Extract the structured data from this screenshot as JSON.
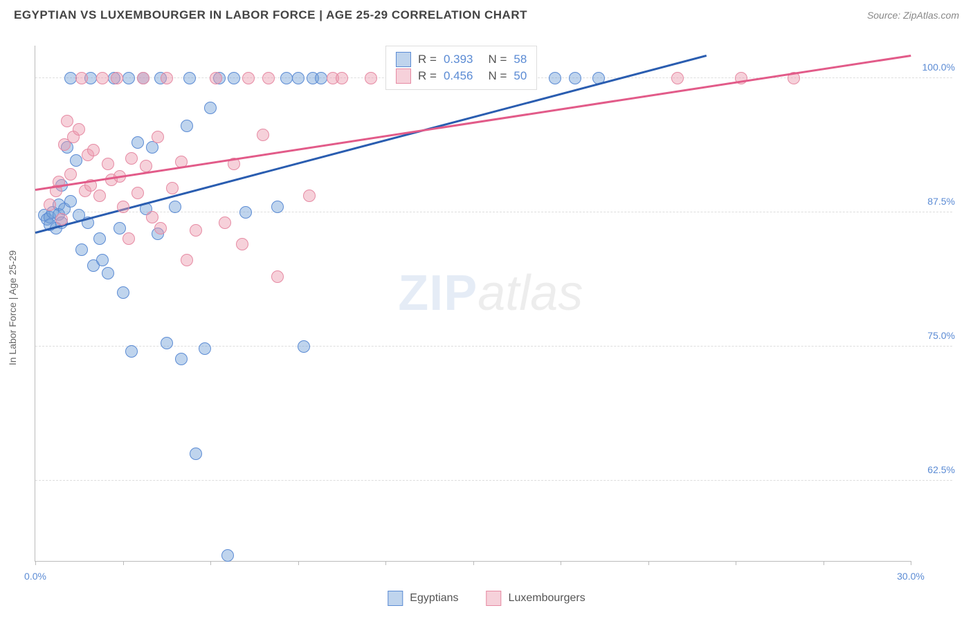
{
  "header": {
    "title": "EGYPTIAN VS LUXEMBOURGER IN LABOR FORCE | AGE 25-29 CORRELATION CHART",
    "source_label": "Source: ZipAtlas.com"
  },
  "chart": {
    "type": "scatter",
    "y_axis_label": "In Labor Force | Age 25-29",
    "x_range": [
      0,
      30
    ],
    "y_range": [
      55,
      103
    ],
    "x_ticks": [
      0,
      3,
      6,
      9,
      12,
      15,
      18,
      21,
      24,
      27,
      30
    ],
    "x_tick_labels": {
      "0": "0.0%",
      "30": "30.0%"
    },
    "y_grid": [
      62.5,
      75.0,
      87.5,
      100.0
    ],
    "y_tick_labels": [
      "62.5%",
      "75.0%",
      "87.5%",
      "100.0%"
    ],
    "background_color": "#ffffff",
    "grid_color": "#dddddd",
    "axis_color": "#bbbbbb",
    "label_color": "#5b8bd4",
    "series": [
      {
        "key": "egyptians",
        "name": "Egyptians",
        "point_fill": "rgba(114,159,216,0.45)",
        "point_stroke": "#5b8bd4",
        "line_color": "#2a5db0",
        "r_value": "0.393",
        "n_value": "58",
        "regression": {
          "x1": 0,
          "y1": 85.5,
          "x2": 23,
          "y2": 102
        },
        "points": [
          [
            0.3,
            87.2
          ],
          [
            0.4,
            86.8
          ],
          [
            0.5,
            87.0
          ],
          [
            0.5,
            86.3
          ],
          [
            0.6,
            87.5
          ],
          [
            0.7,
            86.0
          ],
          [
            0.8,
            88.2
          ],
          [
            0.8,
            87.3
          ],
          [
            0.9,
            86.5
          ],
          [
            0.9,
            90.0
          ],
          [
            1.0,
            87.8
          ],
          [
            1.1,
            93.5
          ],
          [
            1.2,
            100.0
          ],
          [
            1.2,
            88.5
          ],
          [
            1.4,
            92.3
          ],
          [
            1.5,
            87.2
          ],
          [
            1.6,
            84.0
          ],
          [
            1.8,
            86.5
          ],
          [
            1.9,
            100.0
          ],
          [
            2.0,
            82.5
          ],
          [
            2.2,
            85.0
          ],
          [
            2.3,
            83.0
          ],
          [
            2.5,
            81.8
          ],
          [
            2.7,
            100.0
          ],
          [
            2.9,
            86.0
          ],
          [
            3.0,
            80.0
          ],
          [
            3.2,
            100.0
          ],
          [
            3.3,
            74.5
          ],
          [
            3.5,
            94.0
          ],
          [
            3.7,
            100.0
          ],
          [
            3.8,
            87.8
          ],
          [
            4.0,
            93.5
          ],
          [
            4.2,
            85.5
          ],
          [
            4.3,
            100.0
          ],
          [
            4.5,
            75.3
          ],
          [
            4.8,
            88.0
          ],
          [
            5.0,
            73.8
          ],
          [
            5.2,
            95.5
          ],
          [
            5.3,
            100.0
          ],
          [
            5.5,
            65.0
          ],
          [
            5.8,
            74.8
          ],
          [
            6.0,
            97.2
          ],
          [
            6.3,
            100.0
          ],
          [
            6.6,
            55.5
          ],
          [
            6.8,
            100.0
          ],
          [
            7.2,
            87.5
          ],
          [
            8.3,
            88.0
          ],
          [
            8.6,
            100.0
          ],
          [
            9.0,
            100.0
          ],
          [
            9.2,
            75.0
          ],
          [
            9.5,
            100.0
          ],
          [
            9.8,
            100.0
          ],
          [
            12.5,
            100.0
          ],
          [
            14.7,
            100.0
          ],
          [
            16.2,
            100.0
          ],
          [
            17.8,
            100.0
          ],
          [
            18.5,
            100.0
          ],
          [
            19.3,
            100.0
          ]
        ]
      },
      {
        "key": "luxembourgers",
        "name": "Luxembourgers",
        "point_fill": "rgba(235,153,172,0.45)",
        "point_stroke": "#e68aa3",
        "line_color": "#e25b89",
        "r_value": "0.456",
        "n_value": "50",
        "regression": {
          "x1": 0,
          "y1": 89.5,
          "x2": 30,
          "y2": 102
        },
        "points": [
          [
            0.5,
            88.2
          ],
          [
            0.7,
            89.5
          ],
          [
            0.8,
            90.3
          ],
          [
            0.9,
            86.8
          ],
          [
            1.0,
            93.8
          ],
          [
            1.1,
            96.0
          ],
          [
            1.2,
            91.0
          ],
          [
            1.3,
            94.5
          ],
          [
            1.5,
            95.2
          ],
          [
            1.6,
            100.0
          ],
          [
            1.7,
            89.5
          ],
          [
            1.8,
            92.8
          ],
          [
            1.9,
            90.0
          ],
          [
            2.0,
            93.3
          ],
          [
            2.2,
            89.0
          ],
          [
            2.3,
            100.0
          ],
          [
            2.5,
            92.0
          ],
          [
            2.6,
            90.5
          ],
          [
            2.8,
            100.0
          ],
          [
            2.9,
            90.8
          ],
          [
            3.0,
            88.0
          ],
          [
            3.2,
            85.0
          ],
          [
            3.3,
            92.5
          ],
          [
            3.5,
            89.3
          ],
          [
            3.7,
            100.0
          ],
          [
            3.8,
            91.8
          ],
          [
            4.0,
            87.0
          ],
          [
            4.2,
            94.5
          ],
          [
            4.3,
            86.0
          ],
          [
            4.5,
            100.0
          ],
          [
            4.7,
            89.7
          ],
          [
            5.0,
            92.2
          ],
          [
            5.2,
            83.0
          ],
          [
            5.5,
            85.8
          ],
          [
            6.2,
            100.0
          ],
          [
            6.5,
            86.5
          ],
          [
            6.8,
            92.0
          ],
          [
            7.1,
            84.5
          ],
          [
            7.3,
            100.0
          ],
          [
            7.8,
            94.7
          ],
          [
            8.0,
            100.0
          ],
          [
            8.3,
            81.5
          ],
          [
            9.4,
            89.0
          ],
          [
            10.2,
            100.0
          ],
          [
            10.5,
            100.0
          ],
          [
            22.0,
            100.0
          ],
          [
            24.2,
            100.0
          ],
          [
            26.0,
            100.0
          ],
          [
            13.0,
            100.0
          ],
          [
            11.5,
            100.0
          ]
        ]
      }
    ],
    "top_legend": {
      "r_label": "R =",
      "n_label": "N ="
    },
    "watermark": {
      "part1": "ZIP",
      "part2": "atlas"
    }
  }
}
